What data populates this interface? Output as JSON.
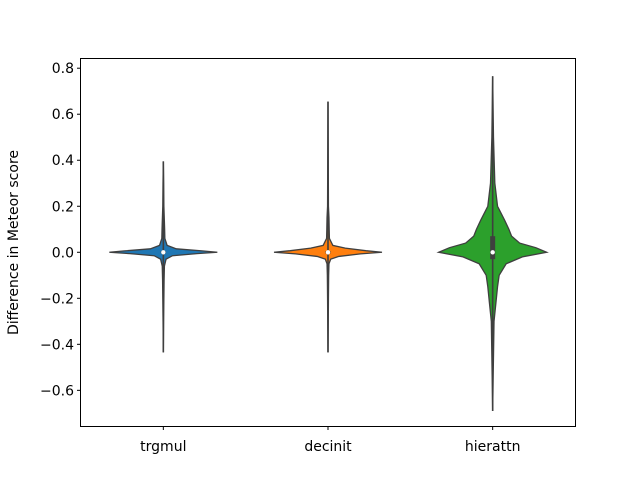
{
  "chart_data": {
    "type": "violin",
    "title": "",
    "xlabel": "",
    "ylabel": "Difference in Meteor score",
    "ylim": [
      -0.755,
      0.84
    ],
    "yticks": [
      -0.6,
      -0.4,
      -0.2,
      0.0,
      0.2,
      0.4,
      0.6,
      0.8
    ],
    "ytick_labels": [
      "−0.6",
      "−0.4",
      "−0.2",
      "0.0",
      "0.2",
      "0.4",
      "0.6",
      "0.8"
    ],
    "categories": [
      "trgmul",
      "decinit",
      "hierattn"
    ],
    "grid": false,
    "series": [
      {
        "category": "trgmul",
        "color": "#1f77b4",
        "min": -0.435,
        "max": 0.395,
        "median": 0.0,
        "q1": -0.005,
        "q3": 0.005,
        "density": [
          [
            -0.435,
            0.0
          ],
          [
            -0.3,
            0.005
          ],
          [
            -0.2,
            0.01
          ],
          [
            -0.12,
            0.014
          ],
          [
            -0.06,
            0.02
          ],
          [
            -0.03,
            0.05
          ],
          [
            -0.015,
            0.17
          ],
          [
            -0.006,
            0.62
          ],
          [
            0.0,
            1.0
          ],
          [
            0.006,
            0.72
          ],
          [
            0.015,
            0.24
          ],
          [
            0.03,
            0.07
          ],
          [
            0.06,
            0.028
          ],
          [
            0.1,
            0.024
          ],
          [
            0.13,
            0.02
          ],
          [
            0.2,
            0.01
          ],
          [
            0.3,
            0.006
          ],
          [
            0.395,
            0.0
          ]
        ]
      },
      {
        "category": "decinit",
        "color": "#ff7f0e",
        "min": -0.435,
        "max": 0.655,
        "median": 0.0,
        "q1": -0.005,
        "q3": 0.005,
        "density": [
          [
            -0.435,
            0.0
          ],
          [
            -0.3,
            0.005
          ],
          [
            -0.2,
            0.008
          ],
          [
            -0.1,
            0.012
          ],
          [
            -0.05,
            0.018
          ],
          [
            -0.03,
            0.05
          ],
          [
            -0.018,
            0.2
          ],
          [
            -0.007,
            0.6
          ],
          [
            0.0,
            1.0
          ],
          [
            0.007,
            0.7
          ],
          [
            0.018,
            0.32
          ],
          [
            0.03,
            0.09
          ],
          [
            0.06,
            0.026
          ],
          [
            0.1,
            0.022
          ],
          [
            0.15,
            0.018
          ],
          [
            0.2,
            0.008
          ],
          [
            0.4,
            0.005
          ],
          [
            0.655,
            0.0
          ]
        ]
      },
      {
        "category": "hierattn",
        "color": "#2ca02c",
        "min": -0.69,
        "max": 0.765,
        "median": 0.0,
        "q1": -0.03,
        "q3": 0.07,
        "density": [
          [
            -0.69,
            0.0
          ],
          [
            -0.5,
            0.012
          ],
          [
            -0.3,
            0.025
          ],
          [
            -0.22,
            0.06
          ],
          [
            -0.15,
            0.09
          ],
          [
            -0.1,
            0.12
          ],
          [
            -0.05,
            0.25
          ],
          [
            -0.02,
            0.55
          ],
          [
            0.0,
            1.0
          ],
          [
            0.02,
            0.8
          ],
          [
            0.04,
            0.5
          ],
          [
            0.07,
            0.35
          ],
          [
            0.1,
            0.3
          ],
          [
            0.14,
            0.22
          ],
          [
            0.2,
            0.09
          ],
          [
            0.3,
            0.04
          ],
          [
            0.5,
            0.015
          ],
          [
            0.765,
            0.0
          ]
        ]
      }
    ]
  }
}
